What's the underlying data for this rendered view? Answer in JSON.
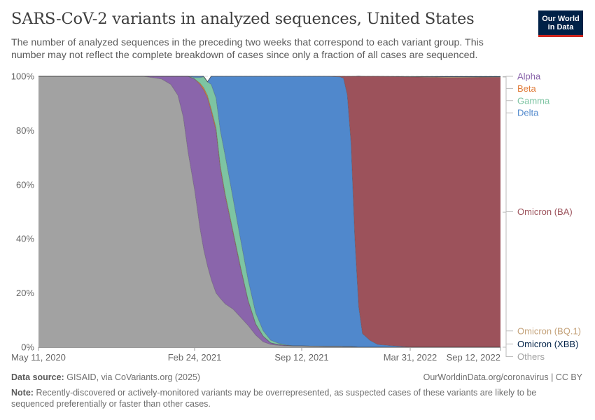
{
  "header": {
    "title": "SARS-CoV-2 variants in analyzed sequences, United States",
    "subtitle": "The number of analyzed sequences in the preceding two weeks that correspond to each variant group. This number may not reflect the complete breakdown of cases since only a fraction of all cases are sequenced.",
    "logo_line1": "Our World",
    "logo_line2": "in Data"
  },
  "footer": {
    "source_label": "Data source:",
    "source_text": "GISAID, via CoVariants.org (2025)",
    "credit": "OurWorldinData.org/coronavirus | CC BY",
    "note_label": "Note:",
    "note_text": "Recently-discovered or actively-monitored variants may be overrepresented, as suspected cases of these variants are likely to be sequenced preferentially or faster than other cases."
  },
  "colors": {
    "Others": "#a2a2a2",
    "Alpha": "#8a65ab",
    "Beta": "#e07b39",
    "Gamma": "#7dc4a2",
    "Delta": "#5088cc",
    "Omicron (BA)": "#9c525b",
    "Omicron (BQ.1)": "#c4a27a",
    "Omicron (XBB)": "#002147"
  },
  "chart_data": {
    "type": "area",
    "stacked": true,
    "percent": true,
    "ylim": [
      0,
      100
    ],
    "yticks": [
      0,
      20,
      40,
      60,
      80,
      100
    ],
    "ytick_labels": [
      "0%",
      "20%",
      "40%",
      "60%",
      "80%",
      "100%"
    ],
    "x_start": "2020-05-11",
    "x_end": "2022-09-12",
    "xticks": [
      {
        "date": "2020-05-11",
        "label": "May 11, 2020"
      },
      {
        "date": "2021-02-24",
        "label": "Feb 24, 2021"
      },
      {
        "date": "2021-09-12",
        "label": "Sep 12, 2021"
      },
      {
        "date": "2022-03-31",
        "label": "Mar 31, 2022"
      },
      {
        "date": "2022-09-12",
        "label": "Sep 12, 2022"
      }
    ],
    "x_scale": "piecewise-linear between labeled ticks",
    "grid": "horizontal dashed",
    "legend": "right, labels aligned to series",
    "series_order": [
      "Others",
      "Alpha",
      "Beta",
      "Gamma",
      "Delta",
      "Omicron (BA)",
      "Omicron (BQ.1)",
      "Omicron (XBB)"
    ],
    "x": [
      "2020-05-11",
      "2020-11-21",
      "2020-12-08",
      "2020-12-25",
      "2021-01-11",
      "2021-01-24",
      "2021-02-03",
      "2021-02-12",
      "2021-02-24",
      "2021-03-06",
      "2021-03-13",
      "2021-03-20",
      "2021-03-27",
      "2021-04-05",
      "2021-04-13",
      "2021-04-22",
      "2021-05-07",
      "2021-05-21",
      "2021-06-04",
      "2021-06-18",
      "2021-07-02",
      "2021-07-16",
      "2021-07-30",
      "2021-08-13",
      "2021-08-27",
      "2021-09-12",
      "2021-10-05",
      "2021-10-28",
      "2021-11-21",
      "2021-11-28",
      "2021-12-05",
      "2021-12-12",
      "2021-12-19",
      "2021-12-26",
      "2022-01-02",
      "2022-01-16",
      "2022-01-30",
      "2022-03-31",
      "2022-06-14",
      "2022-09-12"
    ],
    "series": [
      {
        "name": "Others",
        "values": [
          100,
          100,
          99.5,
          99,
          97,
          93,
          85,
          72,
          58,
          44,
          36,
          30,
          25,
          20,
          18,
          16,
          14,
          11,
          8,
          4.5,
          2,
          1,
          0.7,
          0.5,
          0.5,
          0.5,
          0.4,
          0.3,
          0.3,
          0.2,
          0.2,
          0.2,
          0.1,
          0,
          0,
          0,
          0,
          0,
          0,
          0
        ]
      },
      {
        "name": "Alpha",
        "values": [
          0,
          0,
          0.5,
          1,
          3,
          7,
          15,
          28,
          41,
          53,
          59,
          62,
          62,
          60,
          48,
          40,
          28,
          18,
          9,
          4,
          2,
          0.6,
          0.3,
          0.2,
          0,
          0,
          0,
          0,
          0,
          0,
          0,
          0,
          0,
          0,
          0,
          0,
          0,
          0,
          0,
          0
        ]
      },
      {
        "name": "Beta",
        "values": [
          0,
          0,
          0,
          0,
          0,
          0,
          0,
          0,
          0,
          0.5,
          0.8,
          0.9,
          1,
          1,
          1,
          0.8,
          0.6,
          0.5,
          0.3,
          0.2,
          0.1,
          0,
          0,
          0,
          0,
          0,
          0,
          0,
          0,
          0,
          0,
          0,
          0,
          0,
          0,
          0,
          0,
          0,
          0,
          0
        ]
      },
      {
        "name": "Gamma",
        "values": [
          0,
          0,
          0,
          0,
          0,
          0,
          0,
          0,
          0.5,
          2,
          4,
          5,
          9,
          11,
          13,
          14,
          12,
          10,
          7.5,
          4,
          2,
          1,
          0.5,
          0.2,
          0,
          0,
          0,
          0,
          0,
          0,
          0,
          0,
          0,
          0,
          0,
          0,
          0,
          0,
          0,
          0
        ]
      },
      {
        "name": "Delta",
        "values": [
          0,
          0,
          0,
          0,
          0,
          0,
          0,
          0,
          0.5,
          0.5,
          0.2,
          0.1,
          3,
          8,
          20,
          29.2,
          45.4,
          60.5,
          75.2,
          87.3,
          93.9,
          97.4,
          98.5,
          99.1,
          99.5,
          99.5,
          99.6,
          99.7,
          99.5,
          99.1,
          93,
          75,
          40,
          15,
          5,
          2.5,
          1,
          0,
          0,
          0
        ]
      },
      {
        "name": "Omicron (BA)",
        "values": [
          0,
          0,
          0,
          0,
          0,
          0,
          0,
          0,
          0,
          0,
          0,
          0,
          0,
          0,
          0,
          0,
          0,
          0,
          0,
          0,
          0,
          0,
          0,
          0,
          0,
          0,
          0,
          0,
          0.2,
          0.7,
          6.8,
          24.8,
          59.9,
          85,
          95,
          97.5,
          99,
          99.8,
          99.5,
          99.7
        ]
      },
      {
        "name": "Omicron (BQ.1)",
        "values": [
          0,
          0,
          0,
          0,
          0,
          0,
          0,
          0,
          0,
          0,
          0,
          0,
          0,
          0,
          0,
          0,
          0,
          0,
          0,
          0,
          0,
          0,
          0,
          0,
          0,
          0,
          0,
          0,
          0,
          0,
          0,
          0,
          0,
          0,
          0,
          0,
          0,
          0.1,
          0.3,
          0.1
        ]
      },
      {
        "name": "Omicron (XBB)",
        "values": [
          0,
          0,
          0,
          0,
          0,
          0,
          0,
          0,
          0,
          0,
          0,
          0,
          0,
          0,
          0,
          0,
          0,
          0,
          0,
          0,
          0,
          0,
          0,
          0,
          0,
          0,
          0,
          0,
          0,
          0,
          0,
          0,
          0,
          0.1,
          0,
          0,
          0,
          0.1,
          0.2,
          0.2
        ]
      }
    ],
    "legend_labels": [
      {
        "name": "Alpha",
        "level": 100
      },
      {
        "name": "Beta",
        "level": 95.5
      },
      {
        "name": "Gamma",
        "level": 91
      },
      {
        "name": "Delta",
        "level": 86.5
      },
      {
        "name": "Omicron (BA)",
        "level": 50
      },
      {
        "name": "Omicron (BQ.1)",
        "level": 6
      },
      {
        "name": "Omicron (XBB)",
        "level": 1.2
      },
      {
        "name": "Others",
        "level": -3.5
      }
    ]
  }
}
